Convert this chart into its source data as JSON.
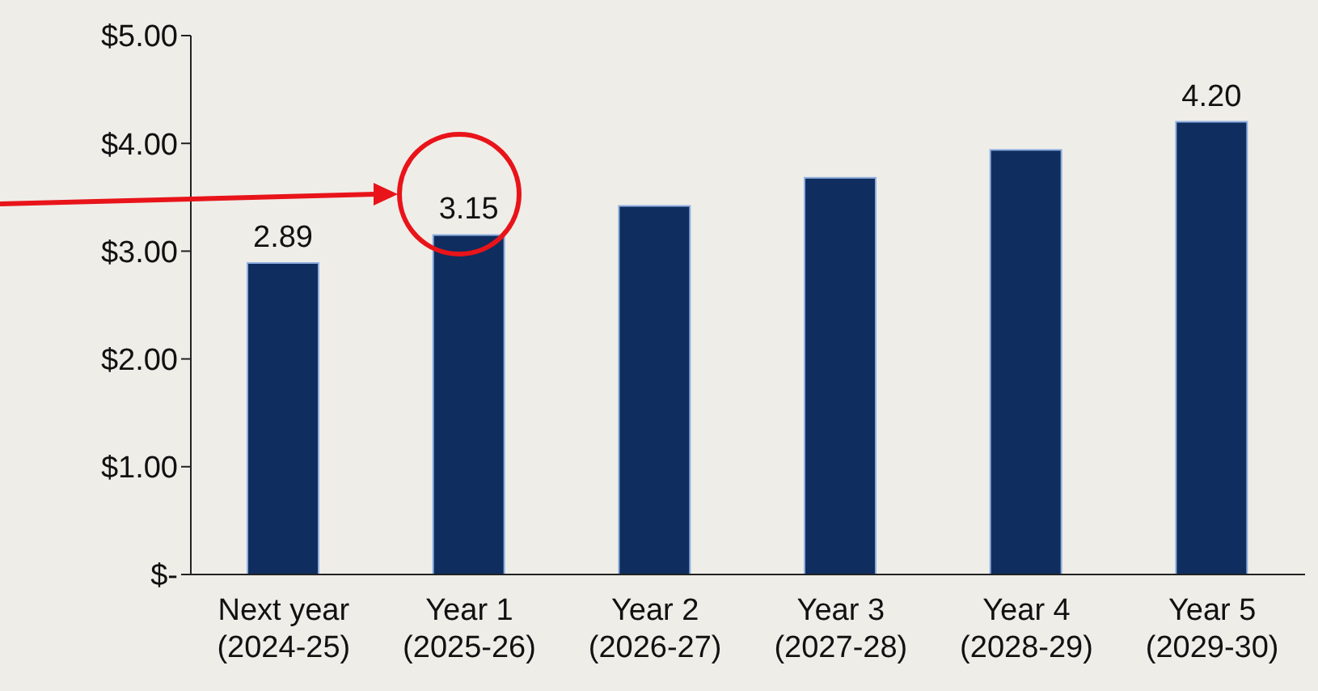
{
  "chart_data": {
    "type": "bar",
    "categories": [
      "Next year\n(2024-25)",
      "Year 1\n(2025-26)",
      "Year 2\n(2026-27)",
      "Year 3\n(2027-28)",
      "Year 4\n(2028-29)",
      "Year 5\n(2029-30)"
    ],
    "values": [
      2.89,
      3.15,
      3.42,
      3.68,
      3.94,
      4.2
    ],
    "value_labels": [
      "2.89",
      "3.15",
      null,
      null,
      null,
      "4.20"
    ],
    "color": "#0f2d5e",
    "ylim": [
      0,
      5
    ],
    "yticks": [
      {
        "value": 0,
        "label": "$-"
      },
      {
        "value": 1,
        "label": "$1.00"
      },
      {
        "value": 2,
        "label": "$2.00"
      },
      {
        "value": 3,
        "label": "$3.00"
      },
      {
        "value": 4,
        "label": "$4.00"
      },
      {
        "value": 5,
        "label": "$5.00"
      }
    ],
    "grid": false,
    "legend": false
  }
}
